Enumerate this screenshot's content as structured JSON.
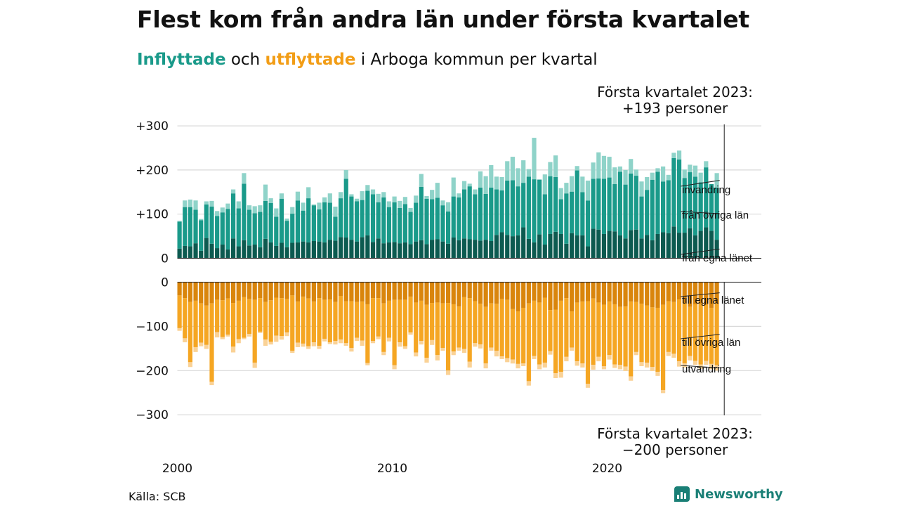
{
  "title": "Flest kom från andra län under första kvartalet",
  "subtitle": {
    "in_word": "Inflyttade",
    "mid": " och ",
    "out_word": "utflyttade",
    "rest": " i Arboga kommun per kvartal"
  },
  "annotation_top": {
    "line1": "Första kvartalet 2023:",
    "line2": "+193 personer"
  },
  "annotation_bottom": {
    "line1": "Första kvartalet 2023:",
    "line2": "−200 personer"
  },
  "source": "Källa: SCB",
  "brand": "Newsworthy",
  "colors": {
    "in_own": "#0c5a50",
    "in_other": "#1a9a8a",
    "in_immig": "#8fd3c9",
    "out_own": "#d9850c",
    "out_other": "#f5a623",
    "out_emig": "#fad296",
    "grid": "#d9d9d9"
  },
  "chart_data": [
    {
      "type": "bar",
      "stacked": true,
      "x_label_ticks": [
        "2000",
        "2010",
        "2020"
      ],
      "x_start": "2000 Q1",
      "x_end": "2023 Q1",
      "y_ticks": [
        "+300",
        "+200",
        "+100",
        "0"
      ],
      "ylim": [
        0,
        300
      ],
      "legend_labels": [
        "invandring",
        "från övriga län",
        "från egna länet"
      ],
      "series": [
        {
          "name": "från egna länet",
          "values": [
            22,
            28,
            27,
            34,
            17,
            46,
            33,
            23,
            31,
            20,
            45,
            27,
            41,
            29,
            31,
            25,
            44,
            36,
            28,
            35,
            25,
            35,
            36,
            38,
            36,
            39,
            38,
            36,
            42,
            40,
            48,
            47,
            42,
            38,
            48,
            52,
            37,
            45,
            34,
            36,
            37,
            34,
            36,
            32,
            38,
            41,
            32,
            42,
            43,
            38,
            33,
            47,
            41,
            45,
            43,
            42,
            40,
            42,
            39,
            53,
            59,
            53,
            50,
            52,
            70,
            44,
            36,
            54,
            31,
            55,
            60,
            55,
            33,
            57,
            52,
            52,
            27,
            67,
            65,
            55,
            62,
            61,
            52,
            45,
            64,
            65,
            45,
            53,
            41,
            55,
            59,
            57,
            72,
            58,
            58,
            68,
            52,
            62,
            70,
            62,
            42
          ]
        },
        {
          "name": "från övriga län",
          "values": [
            61,
            88,
            89,
            76,
            69,
            76,
            84,
            73,
            73,
            92,
            102,
            86,
            128,
            81,
            71,
            80,
            86,
            89,
            66,
            100,
            60,
            66,
            95,
            70,
            100,
            81,
            73,
            91,
            84,
            54,
            88,
            133,
            98,
            91,
            84,
            101,
            108,
            82,
            104,
            80,
            90,
            80,
            87,
            73,
            88,
            121,
            103,
            92,
            94,
            82,
            73,
            93,
            97,
            111,
            120,
            103,
            120,
            104,
            121,
            103,
            95,
            123,
            127,
            111,
            101,
            141,
            143,
            124,
            114,
            131,
            124,
            79,
            114,
            94,
            147,
            98,
            104,
            113,
            116,
            125,
            121,
            107,
            144,
            122,
            128,
            122,
            95,
            102,
            137,
            141,
            115,
            120,
            155,
            166,
            124,
            127,
            133,
            110,
            136,
            106,
            118
          ]
        },
        {
          "name": "invandring",
          "values": [
            2,
            15,
            17,
            21,
            3,
            7,
            13,
            11,
            11,
            12,
            9,
            16,
            24,
            10,
            16,
            15,
            37,
            11,
            19,
            12,
            5,
            15,
            20,
            18,
            25,
            2,
            15,
            11,
            21,
            23,
            14,
            20,
            5,
            6,
            20,
            13,
            11,
            19,
            12,
            13,
            13,
            16,
            16,
            9,
            16,
            29,
            6,
            21,
            34,
            11,
            21,
            43,
            9,
            19,
            6,
            11,
            37,
            40,
            51,
            29,
            30,
            44,
            53,
            41,
            51,
            17,
            94,
            1,
            45,
            32,
            49,
            25,
            24,
            35,
            10,
            35,
            45,
            37,
            59,
            52,
            47,
            38,
            12,
            33,
            33,
            14,
            34,
            29,
            16,
            8,
            34,
            12,
            12,
            20,
            19,
            17,
            25,
            22,
            14,
            0,
            33
          ]
        }
      ]
    },
    {
      "type": "bar",
      "stacked": true,
      "x_label_ticks": [
        "2000",
        "2010",
        "2020"
      ],
      "x_start": "2000 Q1",
      "x_end": "2023 Q1",
      "y_ticks": [
        "0",
        "−100",
        "−200",
        "−300"
      ],
      "ylim": [
        -300,
        0
      ],
      "legend_labels": [
        "till egna länet",
        "till övriga län",
        "utvandring"
      ],
      "series": [
        {
          "name": "till egna länet",
          "values": [
            -30,
            -36,
            -45,
            -42,
            -48,
            -53,
            -48,
            -40,
            -41,
            -37,
            -47,
            -42,
            -34,
            -38,
            -40,
            -36,
            -45,
            -41,
            -35,
            -36,
            -38,
            -30,
            -44,
            -33,
            -37,
            -44,
            -36,
            -40,
            -39,
            -45,
            -31,
            -43,
            -43,
            -45,
            -44,
            -50,
            -36,
            -36,
            -48,
            -42,
            -40,
            -40,
            -40,
            -33,
            -46,
            -42,
            -51,
            -47,
            -46,
            -48,
            -47,
            -50,
            -55,
            -34,
            -36,
            -43,
            -49,
            -56,
            -48,
            -49,
            -38,
            -40,
            -61,
            -66,
            -58,
            -48,
            -42,
            -46,
            -35,
            -63,
            -62,
            -42,
            -36,
            -66,
            -46,
            -44,
            -43,
            -37,
            -46,
            -51,
            -44,
            -50,
            -56,
            -55,
            -44,
            -45,
            -49,
            -53,
            -57,
            -58,
            -51,
            -43,
            -45,
            -39,
            -47,
            -56,
            -50,
            -49,
            -51,
            -58,
            -48
          ]
        },
        {
          "name": "till övriga län",
          "values": [
            -74,
            -91,
            -136,
            -105,
            -89,
            -89,
            -177,
            -73,
            -83,
            -82,
            -99,
            -87,
            -92,
            -79,
            -142,
            -76,
            -85,
            -94,
            -86,
            -86,
            -76,
            -125,
            -93,
            -106,
            -108,
            -92,
            -108,
            -88,
            -97,
            -88,
            -99,
            -95,
            -106,
            -81,
            -88,
            -133,
            -97,
            -87,
            -110,
            -84,
            -148,
            -96,
            -105,
            -81,
            -113,
            -91,
            -120,
            -84,
            -119,
            -101,
            -153,
            -107,
            -93,
            -117,
            -144,
            -95,
            -92,
            -128,
            -100,
            -106,
            -130,
            -132,
            -114,
            -119,
            -126,
            -176,
            -125,
            -140,
            -147,
            -93,
            -144,
            -161,
            -133,
            -82,
            -133,
            -140,
            -187,
            -150,
            -123,
            -139,
            -121,
            -136,
            -131,
            -136,
            -169,
            -113,
            -132,
            -129,
            -135,
            -145,
            -193,
            -115,
            -117,
            -140,
            -137,
            -111,
            -128,
            -137,
            -127,
            -127,
            -140
          ]
        },
        {
          "name": "utvandring",
          "values": [
            -6,
            -9,
            -11,
            -11,
            -8,
            -9,
            -8,
            -12,
            -5,
            -4,
            -13,
            -9,
            -3,
            -6,
            -12,
            -3,
            -14,
            -6,
            -14,
            -8,
            -8,
            -5,
            -10,
            -7,
            -6,
            -9,
            -7,
            -6,
            -4,
            -8,
            -8,
            -6,
            -8,
            -7,
            -12,
            -5,
            -5,
            -6,
            -7,
            -8,
            -9,
            -10,
            -6,
            -5,
            -9,
            -8,
            -11,
            -11,
            -12,
            -6,
            -10,
            -8,
            -7,
            -9,
            -13,
            -8,
            -9,
            -11,
            -7,
            -13,
            -6,
            -9,
            -9,
            -10,
            -6,
            -10,
            -7,
            -11,
            -11,
            -8,
            -11,
            -13,
            -10,
            -7,
            -10,
            -9,
            -9,
            -11,
            -10,
            -7,
            -10,
            -8,
            -10,
            -10,
            -10,
            -7,
            -9,
            -11,
            -9,
            -9,
            -7,
            -9,
            -9,
            -12,
            -9,
            -10,
            -9,
            -10,
            -9,
            -12,
            -12
          ]
        }
      ]
    }
  ]
}
